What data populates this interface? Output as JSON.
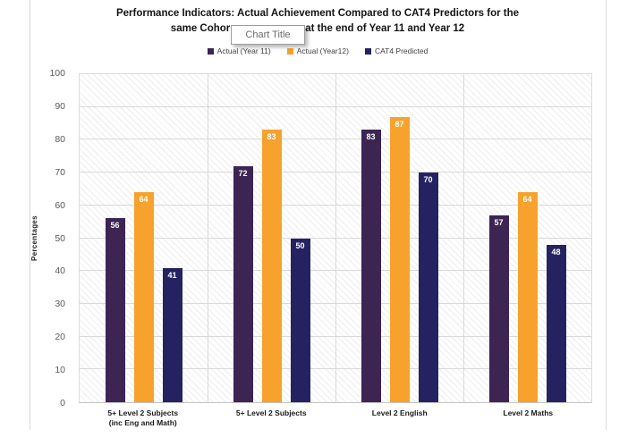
{
  "chart_data": {
    "type": "bar",
    "title_line1": "Performance Indicators: Actual Achievement Compared to CAT4 Predictors for the",
    "title_line2_left": "same Cohor",
    "title_line2_right": "at the end of Year 11 and Year 12",
    "tooltip_label": "Chart Title",
    "ylabel": "Percentages",
    "ylim": [
      0,
      100
    ],
    "yticks": [
      0,
      10,
      20,
      30,
      40,
      50,
      60,
      70,
      80,
      90,
      100
    ],
    "grid": true,
    "legend_position": "top",
    "plot_background": "diagonal-hatch",
    "categories": [
      "5+ Level 2 Subjects\n(inc Eng and Math)",
      "5+ Level 2 Subjects",
      "Level 2 English",
      "Level 2 Maths"
    ],
    "series": [
      {
        "name": "Actual (Year 11)",
        "color": "#3C2453",
        "values": [
          56,
          72,
          83,
          57
        ]
      },
      {
        "name": "Actual (Year12)",
        "color": "#F6A22C",
        "values": [
          64,
          83,
          87,
          64
        ]
      },
      {
        "name": "CAT4  Predicted",
        "color": "#262262",
        "values": [
          41,
          50,
          70,
          48
        ]
      }
    ],
    "colors": {
      "gridline": "#d9d9d9",
      "tick_label": "#595959",
      "data_label": "#ffffff"
    }
  }
}
